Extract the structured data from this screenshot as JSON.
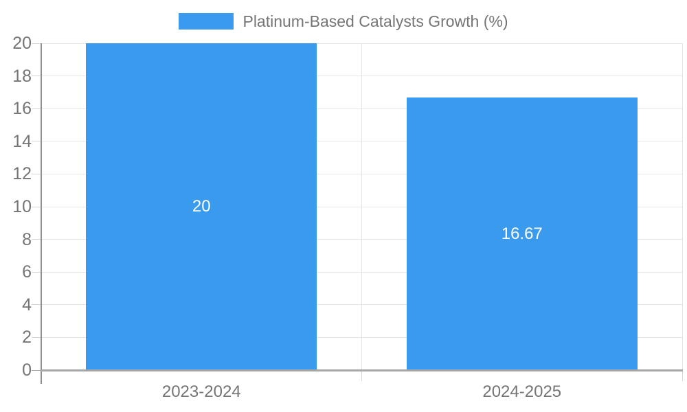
{
  "chart_data": {
    "type": "bar",
    "title": "Platinum-Based Catalysts Growth (%)",
    "categories": [
      "2023-2024",
      "2024-2025"
    ],
    "values": [
      20,
      16.67
    ],
    "bar_labels": [
      "20",
      "16.67"
    ],
    "ylabel": "",
    "xlabel": "",
    "ylim": [
      0,
      20
    ],
    "ytick_step": 2,
    "ytick_labels": [
      "0",
      "2",
      "4",
      "6",
      "8",
      "10",
      "12",
      "14",
      "16",
      "18",
      "20"
    ],
    "grid": true,
    "legend_position": "top-center"
  },
  "legend": {
    "label": "Platinum-Based Catalysts Growth (%)"
  },
  "colors": {
    "bar": "#399AEE",
    "bar_label": "#ffffff",
    "grid": "#e6e6e6",
    "tick": "#d6d6d6",
    "axis_left": "#909090",
    "axis_bottom": "#a6a6a6",
    "label_text": "#757575"
  }
}
